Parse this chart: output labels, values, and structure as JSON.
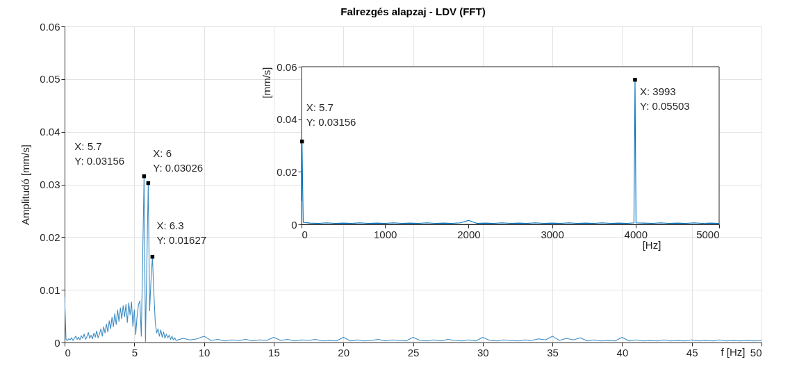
{
  "chart_data": [
    {
      "type": "line",
      "title": "Falrezgés alapzaj - LDV (FFT)",
      "xlabel": "f [Hz]",
      "ylabel": "Amplitudó [mm/s]",
      "x": [
        0,
        0.1,
        0.2,
        0.3,
        0.4,
        0.5,
        0.6,
        0.7,
        0.8,
        0.9,
        1.0,
        1.1,
        1.2,
        1.3,
        1.4,
        1.5,
        1.6,
        1.7,
        1.8,
        1.9,
        2.0,
        2.1,
        2.2,
        2.3,
        2.4,
        2.5,
        2.6,
        2.7,
        2.8,
        2.9,
        3.0,
        3.1,
        3.2,
        3.3,
        3.4,
        3.5,
        3.6,
        3.7,
        3.8,
        3.9,
        4.0,
        4.1,
        4.2,
        4.3,
        4.4,
        4.5,
        4.6,
        4.7,
        4.8,
        4.9,
        5.0,
        5.1,
        5.2,
        5.3,
        5.4,
        5.5,
        5.6,
        5.7,
        5.8,
        5.9,
        6.0,
        6.1,
        6.2,
        6.3,
        6.4,
        6.5,
        6.6,
        6.7,
        6.8,
        6.9,
        7.0,
        7.1,
        7.2,
        7.3,
        7.4,
        7.5,
        7.6,
        7.7,
        7.8,
        7.9,
        8.0,
        8.5,
        9,
        9.5,
        10,
        10.5,
        11,
        11.5,
        12,
        12.5,
        13,
        13.5,
        14,
        14.5,
        15,
        15.5,
        16,
        16.5,
        17,
        17.5,
        18,
        18.5,
        19,
        19.5,
        20,
        20.5,
        21,
        21.5,
        22,
        22.5,
        23,
        23.5,
        24,
        24.5,
        25,
        25.5,
        26,
        26.5,
        27,
        27.5,
        28,
        28.5,
        29,
        29.5,
        30,
        30.5,
        31,
        31.5,
        32,
        32.5,
        33,
        33.5,
        34,
        34.5,
        35,
        35.5,
        36,
        36.5,
        37,
        37.5,
        38,
        38.5,
        39,
        39.5,
        40,
        40.5,
        41,
        41.5,
        42,
        42.5,
        43,
        43.5,
        44,
        44.5,
        45,
        45.5,
        46,
        46.5,
        47,
        47.5,
        48,
        48.5,
        49,
        49.5,
        50
      ],
      "series": [
        {
          "color": "#3d8cc4",
          "values": [
            0.0087,
            0.0006,
            0.0004,
            0.0007,
            0.0005,
            0.0009,
            0.0004,
            0.0008,
            0.0012,
            0.0006,
            0.001,
            0.0005,
            0.0013,
            0.0008,
            0.0016,
            0.0006,
            0.0011,
            0.0019,
            0.0008,
            0.0014,
            0.0007,
            0.0018,
            0.001,
            0.0022,
            0.0009,
            0.0016,
            0.0026,
            0.0012,
            0.003,
            0.0018,
            0.0035,
            0.002,
            0.0041,
            0.0026,
            0.0048,
            0.003,
            0.0055,
            0.0034,
            0.0062,
            0.004,
            0.0066,
            0.0045,
            0.007,
            0.0049,
            0.0072,
            0.0038,
            0.0075,
            0.0052,
            0.0077,
            0.003,
            0.0062,
            0.0015,
            0.005,
            0.0072,
            0.0079,
            0.0012,
            0.016,
            0.03156,
            0.0002,
            0.015,
            0.03026,
            0.006,
            0.012,
            0.01627,
            0.0095,
            0.004,
            0.0018,
            0.0026,
            0.0012,
            0.0024,
            0.001,
            0.002,
            0.0008,
            0.0016,
            0.0009,
            0.0014,
            0.0006,
            0.0012,
            0.0005,
            0.0009,
            0.0004,
            0.0008,
            0.0005,
            0.0007,
            0.0012,
            0.0004,
            0.0006,
            0.0003,
            0.0005,
            0.0004,
            0.0006,
            0.0003,
            0.0005,
            0.0004,
            0.001,
            0.0004,
            0.0006,
            0.0003,
            0.0005,
            0.0004,
            0.0006,
            0.0003,
            0.0004,
            0.0003,
            0.001,
            0.0003,
            0.0005,
            0.0003,
            0.0004,
            0.0006,
            0.0003,
            0.0005,
            0.0004,
            0.0003,
            0.001,
            0.0004,
            0.0003,
            0.0005,
            0.0003,
            0.0006,
            0.0004,
            0.0003,
            0.0005,
            0.0003,
            0.001,
            0.0004,
            0.0003,
            0.0005,
            0.0004,
            0.0003,
            0.0005,
            0.0004,
            0.0007,
            0.0005,
            0.0012,
            0.0004,
            0.0008,
            0.0005,
            0.0009,
            0.0003,
            0.0005,
            0.0003,
            0.0004,
            0.0003,
            0.001,
            0.0003,
            0.0005,
            0.0003,
            0.0004,
            0.0003,
            0.0005,
            0.0003,
            0.0004,
            0.0003,
            0.0005,
            0.0003,
            0.0004,
            0.0003,
            0.0005,
            0.0003,
            0.0004,
            0.0003,
            0.0004,
            0.0003,
            0.0004
          ]
        },
        {
          "type": "scatter",
          "color": "#000000",
          "marker": "square",
          "x": [
            5.7,
            6,
            6.3
          ],
          "values": [
            0.03156,
            0.03026,
            0.01627
          ]
        }
      ],
      "xlim": [
        0,
        50
      ],
      "xticks": [
        0,
        5,
        10,
        15,
        20,
        25,
        30,
        35,
        40,
        45,
        50
      ],
      "ylim": [
        0,
        0.06
      ],
      "yticks": [
        0,
        0.01,
        0.02,
        0.03,
        0.04,
        0.05,
        0.06
      ],
      "grid": true,
      "marker": "none",
      "line_style": "solid",
      "annotations": [
        {
          "text": "X: 5.7\nY: 0.03156",
          "x": 5.7,
          "y": 0.03156
        },
        {
          "text": "X: 6\nY: 0.03026",
          "x": 6,
          "y": 0.03026
        },
        {
          "text": "X: 6.3\nY: 0.01627",
          "x": 6.3,
          "y": 0.01627
        }
      ]
    },
    {
      "type": "line",
      "xlabel": "[Hz]",
      "ylabel": "[mm/s]",
      "x": [
        0,
        5.7,
        20,
        100,
        200,
        300,
        400,
        500,
        600,
        700,
        800,
        900,
        1000,
        1100,
        1200,
        1300,
        1400,
        1500,
        1600,
        1700,
        1800,
        1900,
        2000,
        2100,
        2200,
        2300,
        2400,
        2500,
        2600,
        2700,
        2800,
        2900,
        3000,
        3100,
        3200,
        3300,
        3400,
        3500,
        3600,
        3700,
        3800,
        3900,
        3980,
        3993,
        4005,
        4100,
        4200,
        4300,
        4400,
        4500,
        4600,
        4700,
        4800,
        4900,
        5000
      ],
      "series": [
        {
          "color": "#0072bd",
          "values": [
            0.009,
            0.03156,
            0.0008,
            0.0005,
            0.0004,
            0.0006,
            0.0004,
            0.0005,
            0.0004,
            0.0006,
            0.0004,
            0.0005,
            0.0004,
            0.0006,
            0.0004,
            0.0005,
            0.0004,
            0.0006,
            0.0004,
            0.0005,
            0.0004,
            0.0006,
            0.0015,
            0.0004,
            0.0005,
            0.0004,
            0.0006,
            0.0004,
            0.0005,
            0.0004,
            0.0006,
            0.0004,
            0.0005,
            0.0004,
            0.0006,
            0.0004,
            0.0005,
            0.0004,
            0.0006,
            0.0004,
            0.0005,
            0.0004,
            0.0006,
            0.05503,
            0.0006,
            0.0005,
            0.0004,
            0.0006,
            0.0004,
            0.0005,
            0.0004,
            0.0006,
            0.0004,
            0.0005,
            0.0004
          ]
        },
        {
          "type": "scatter",
          "color": "#000000",
          "marker": "square",
          "x": [
            5.7,
            3993
          ],
          "values": [
            0.03156,
            0.05503
          ]
        }
      ],
      "xlim": [
        0,
        5000
      ],
      "xticks": [
        0,
        1000,
        2000,
        3000,
        4000,
        5000
      ],
      "ylim": [
        0,
        0.06
      ],
      "yticks": [
        0,
        0.02,
        0.04,
        0.06
      ],
      "grid": false,
      "marker": "none",
      "line_style": "solid",
      "annotations": [
        {
          "text": "X: 5.7\nY: 0.03156",
          "x": 5.7,
          "y": 0.03156
        },
        {
          "text": "X: 3993\nY: 0.05503",
          "x": 3993,
          "y": 0.05503
        }
      ]
    }
  ]
}
